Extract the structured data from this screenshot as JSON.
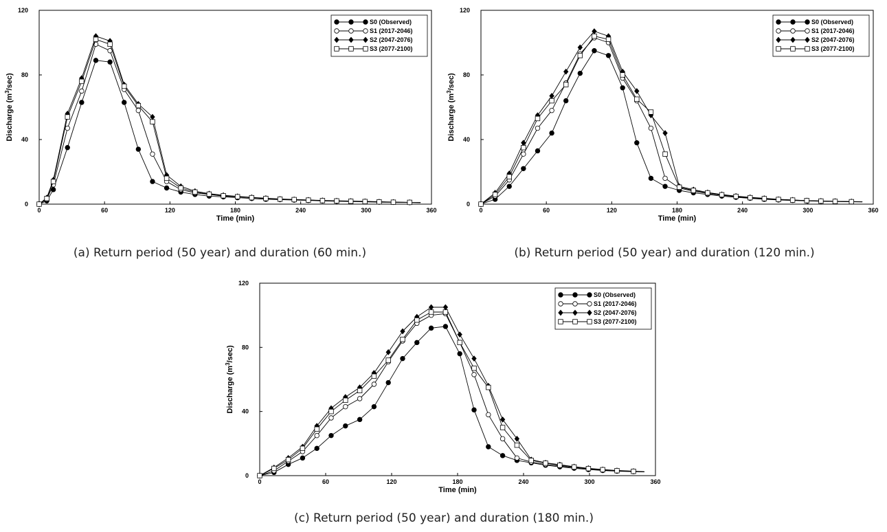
{
  "chart_data": [
    {
      "type": "line",
      "caption": "(a) Return period (50 year) and duration (60 min.)",
      "xlabel": "Time (min)",
      "ylabel": "Discharge (m3/sec)",
      "ylabel_base": "Discharge (m",
      "ylabel_sup": "3",
      "ylabel_tail": "/sec)",
      "xlim": [
        0,
        360
      ],
      "ylim": [
        0,
        120
      ],
      "xticks": [
        0,
        60,
        120,
        180,
        240,
        300,
        360
      ],
      "yticks": [
        0,
        40,
        80,
        120
      ],
      "grid": false,
      "legend_position": "top-right",
      "series": [
        {
          "name": "S0 (Observed)",
          "marker": "filled-circle",
          "x": [
            0,
            7,
            13,
            26,
            39,
            52,
            65,
            78,
            91,
            104,
            117,
            130,
            143,
            156,
            169,
            182,
            195,
            208,
            221,
            234,
            247,
            260,
            273,
            286,
            299,
            312,
            325,
            340,
            350
          ],
          "y": [
            0,
            2,
            9,
            35,
            63,
            89,
            88,
            63,
            34,
            14,
            10,
            7.5,
            6,
            5,
            4.5,
            4,
            3.5,
            3,
            2.8,
            2.5,
            2.3,
            2,
            1.8,
            1.6,
            1.4,
            1.2,
            1.1,
            1,
            0.9
          ]
        },
        {
          "name": "S1 (2017-2046)",
          "marker": "open-circle",
          "x": [
            0,
            7,
            13,
            26,
            39,
            52,
            65,
            78,
            91,
            104,
            117,
            130,
            143,
            156,
            169,
            182,
            195,
            208,
            221,
            234,
            247,
            260,
            273,
            286,
            299,
            312,
            325,
            340,
            350
          ],
          "y": [
            0,
            3,
            12,
            47,
            70,
            99,
            95,
            71,
            58,
            31,
            14,
            9,
            7,
            6,
            5,
            4.5,
            4,
            3.5,
            3,
            2.8,
            2.5,
            2.2,
            2,
            1.8,
            1.6,
            1.4,
            1.2,
            1.1,
            1
          ]
        },
        {
          "name": "S2 (2047-2076)",
          "marker": "filled-diamond",
          "x": [
            0,
            7,
            13,
            26,
            39,
            52,
            65,
            78,
            91,
            104,
            117,
            130,
            143,
            156,
            169,
            182,
            195,
            208,
            221,
            234,
            247,
            260,
            273,
            286,
            299,
            312,
            325,
            340,
            350
          ],
          "y": [
            0,
            4,
            15,
            56,
            78,
            104,
            101,
            74,
            62,
            54,
            18,
            11,
            8,
            6.5,
            5.5,
            4.8,
            4.2,
            3.7,
            3.2,
            2.9,
            2.6,
            2.3,
            2.1,
            1.9,
            1.7,
            1.5,
            1.3,
            1.1,
            1
          ]
        },
        {
          "name": "S3 (2077-2100)",
          "marker": "open-square",
          "x": [
            0,
            7,
            13,
            26,
            39,
            52,
            65,
            78,
            91,
            104,
            117,
            130,
            143,
            156,
            169,
            182,
            195,
            208,
            221,
            234,
            247,
            260,
            273,
            286,
            299,
            312,
            325,
            340,
            350
          ],
          "y": [
            0,
            3.5,
            14,
            54,
            76,
            102,
            99,
            73,
            61,
            51,
            16,
            10,
            7.5,
            6.2,
            5.2,
            4.6,
            4,
            3.5,
            3.1,
            2.8,
            2.5,
            2.2,
            2,
            1.8,
            1.6,
            1.4,
            1.2,
            1.1,
            1
          ]
        }
      ]
    },
    {
      "type": "line",
      "caption": "(b) Return period (50 year) and duration (120 min.)",
      "xlabel": "Time (min)",
      "ylabel": "Discharge (m3/sec)",
      "ylabel_base": "Discharge (m",
      "ylabel_sup": "3",
      "ylabel_tail": "/sec)",
      "xlim": [
        0,
        360
      ],
      "ylim": [
        0,
        120
      ],
      "xticks": [
        0,
        60,
        120,
        180,
        240,
        300,
        360
      ],
      "yticks": [
        0,
        40,
        80,
        120
      ],
      "grid": false,
      "legend_position": "top-right",
      "series": [
        {
          "name": "S0 (Observed)",
          "marker": "filled-circle",
          "x": [
            0,
            13,
            26,
            39,
            52,
            65,
            78,
            91,
            104,
            117,
            130,
            143,
            156,
            169,
            182,
            195,
            208,
            221,
            234,
            247,
            260,
            273,
            286,
            299,
            312,
            325,
            340,
            350
          ],
          "y": [
            0,
            3,
            11,
            22,
            33,
            44,
            64,
            81,
            95,
            92,
            72,
            38,
            16,
            11,
            8.5,
            7,
            6,
            5,
            4.2,
            3.6,
            3,
            2.6,
            2.3,
            2,
            1.8,
            1.6,
            1.5,
            1.4
          ]
        },
        {
          "name": "S1 (2017-2046)",
          "marker": "open-circle",
          "x": [
            0,
            13,
            26,
            39,
            52,
            65,
            78,
            91,
            104,
            117,
            130,
            143,
            156,
            169,
            182,
            195,
            208,
            221,
            234,
            247,
            260,
            273,
            286,
            299,
            312,
            325,
            340,
            350
          ],
          "y": [
            0,
            5,
            15,
            31,
            47,
            58,
            75,
            93,
            103,
            100,
            78,
            64,
            47,
            16,
            10,
            8,
            6.5,
            5.5,
            4.6,
            3.9,
            3.3,
            2.8,
            2.4,
            2.1,
            1.9,
            1.7,
            1.5,
            1.4
          ]
        },
        {
          "name": "S2 (2047-2076)",
          "marker": "filled-diamond",
          "x": [
            0,
            13,
            26,
            39,
            52,
            65,
            78,
            91,
            104,
            117,
            130,
            143,
            156,
            169,
            182,
            195,
            208,
            221,
            234,
            247,
            260,
            273,
            286,
            299,
            312,
            325,
            340,
            350
          ],
          "y": [
            0,
            7,
            19,
            38,
            55,
            67,
            82,
            97,
            107,
            104,
            82,
            70,
            55,
            44,
            11,
            9,
            7.2,
            6,
            5,
            4.2,
            3.6,
            3,
            2.6,
            2.2,
            2,
            1.8,
            1.6,
            1.5
          ]
        },
        {
          "name": "S3 (2077-2100)",
          "marker": "open-square",
          "x": [
            0,
            13,
            26,
            39,
            52,
            65,
            78,
            91,
            104,
            117,
            130,
            143,
            156,
            169,
            182,
            195,
            208,
            221,
            234,
            247,
            260,
            273,
            286,
            299,
            312,
            325,
            340,
            350
          ],
          "y": [
            0,
            6,
            17,
            35,
            53,
            64,
            74,
            92,
            104,
            102,
            80,
            65,
            57,
            31,
            10.5,
            8.5,
            7,
            5.8,
            4.8,
            4,
            3.4,
            2.9,
            2.5,
            2.2,
            1.9,
            1.7,
            1.5,
            1.4
          ]
        }
      ]
    },
    {
      "type": "line",
      "caption": "(c) Return period (50 year) and duration (180 min.)",
      "xlabel": "Time (min)",
      "ylabel": "Discharge (m3/sec)",
      "ylabel_base": "Discharge (m",
      "ylabel_sup": "3",
      "ylabel_tail": "/sec)",
      "xlim": [
        0,
        360
      ],
      "ylim": [
        0,
        120
      ],
      "xticks": [
        0,
        60,
        120,
        180,
        240,
        300,
        360
      ],
      "yticks": [
        0,
        40,
        80,
        120
      ],
      "grid": false,
      "legend_position": "top-right",
      "series": [
        {
          "name": "S0 (Observed)",
          "marker": "filled-circle",
          "x": [
            0,
            13,
            26,
            39,
            52,
            65,
            78,
            91,
            104,
            117,
            130,
            143,
            156,
            169,
            182,
            195,
            208,
            221,
            234,
            247,
            260,
            273,
            286,
            299,
            312,
            325,
            340,
            350
          ],
          "y": [
            0,
            2,
            7,
            11,
            17,
            25,
            31,
            35,
            43,
            58,
            73,
            83,
            92,
            93,
            76,
            41,
            18,
            12.5,
            9.5,
            8,
            6.5,
            5.5,
            4.6,
            3.8,
            3.2,
            2.8,
            2.5,
            2.3
          ]
        },
        {
          "name": "S1 (2017-2046)",
          "marker": "open-circle",
          "x": [
            0,
            13,
            26,
            39,
            52,
            65,
            78,
            91,
            104,
            117,
            130,
            143,
            156,
            169,
            182,
            195,
            208,
            221,
            234,
            247,
            260,
            273,
            286,
            299,
            312,
            325,
            340,
            350
          ],
          "y": [
            0,
            3,
            9,
            15,
            25,
            36,
            43,
            48,
            57,
            71,
            84,
            95,
            100,
            101,
            83,
            63,
            38,
            23,
            11,
            8.5,
            7,
            6,
            5,
            4.2,
            3.5,
            3,
            2.6,
            2.4
          ]
        },
        {
          "name": "S2 (2047-2076)",
          "marker": "filled-diamond",
          "x": [
            0,
            13,
            26,
            39,
            52,
            65,
            78,
            91,
            104,
            117,
            130,
            143,
            156,
            169,
            182,
            195,
            208,
            221,
            234,
            247,
            260,
            273,
            286,
            299,
            312,
            325,
            340,
            350
          ],
          "y": [
            0,
            5,
            11,
            18,
            31,
            42,
            49,
            55,
            64,
            77,
            90,
            99,
            105,
            105,
            88,
            73,
            56,
            35,
            23,
            10,
            8,
            6.8,
            5.6,
            4.6,
            3.8,
            3.2,
            2.8,
            2.5
          ]
        },
        {
          "name": "S3 (2077-2100)",
          "marker": "open-square",
          "x": [
            0,
            13,
            26,
            39,
            52,
            65,
            78,
            91,
            104,
            117,
            130,
            143,
            156,
            169,
            182,
            195,
            208,
            221,
            234,
            247,
            260,
            273,
            286,
            299,
            312,
            325,
            340,
            350
          ],
          "y": [
            0,
            4.5,
            10,
            17,
            29,
            40,
            47,
            53,
            62,
            72,
            85,
            97,
            102,
            102,
            83,
            67,
            55,
            30,
            19,
            9.5,
            7.8,
            6.5,
            5.4,
            4.4,
            3.7,
            3.1,
            2.7,
            2.4
          ]
        }
      ]
    }
  ]
}
